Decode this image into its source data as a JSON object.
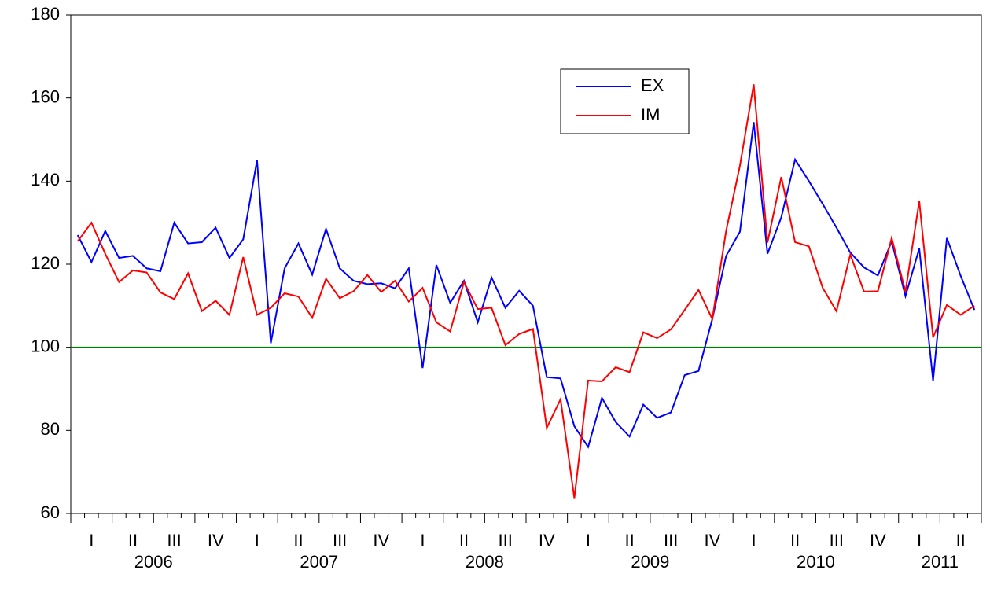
{
  "chart_data": {
    "type": "line",
    "quarters": [
      "I",
      "II",
      "III",
      "IV",
      "I",
      "II",
      "III",
      "IV",
      "I",
      "II",
      "III",
      "IV",
      "I",
      "II",
      "III",
      "IV",
      "I",
      "II",
      "III",
      "IV",
      "I",
      "II"
    ],
    "years": [
      "2006",
      "2007",
      "2008",
      "2009",
      "2010",
      "2011"
    ],
    "series": [
      {
        "name": "EX",
        "color": "#0000ff",
        "values": [
          127,
          120.5,
          128,
          121.5,
          122,
          119,
          118.3,
          130,
          125,
          125.3,
          128.8,
          121.5,
          126,
          145,
          101,
          119,
          125,
          117.5,
          128.5,
          119,
          116,
          115.2,
          115.4,
          114.2,
          119,
          95,
          119.8,
          110.7,
          116,
          106,
          116.8,
          109.5,
          113.6,
          110,
          92.8,
          92.5,
          81,
          76,
          87.8,
          82,
          78.5,
          86.2,
          83,
          84.3,
          93.3,
          94.3,
          106.8,
          122,
          127.8,
          154.2,
          122.5,
          131.3,
          145.2,
          140,
          134.5,
          128.8,
          122.8,
          119.2,
          117.3,
          125.5,
          112.3,
          123.8,
          92,
          126.3,
          117.2,
          109
        ]
      },
      {
        "name": "IM",
        "color": "#ff0000",
        "values": [
          125.5,
          130,
          122.5,
          115.7,
          118.5,
          118,
          113.2,
          111.6,
          117.8,
          108.7,
          111.2,
          107.8,
          121.7,
          107.8,
          109.5,
          113,
          112.2,
          107.1,
          116.5,
          111.8,
          113.5,
          117.4,
          113.3,
          116,
          111,
          114.3,
          106,
          103.8,
          115.7,
          109.2,
          109.5,
          100.5,
          103.2,
          104.4,
          80.6,
          87.5,
          63.7,
          92,
          91.8,
          95.2,
          94,
          103.6,
          102.2,
          104.3,
          109,
          113.8,
          106.8,
          128,
          143.7,
          163.3,
          125.2,
          141,
          125.3,
          124.3,
          114.3,
          108.7,
          122.3,
          113.4,
          113.5,
          126.3,
          113.4,
          135.2,
          102.4,
          110.2,
          107.8,
          110
        ]
      }
    ],
    "refline": 100,
    "refline_color": "#008000",
    "ylim": [
      60,
      180
    ],
    "yticks": [
      60,
      80,
      100,
      120,
      140,
      160,
      180
    ]
  }
}
